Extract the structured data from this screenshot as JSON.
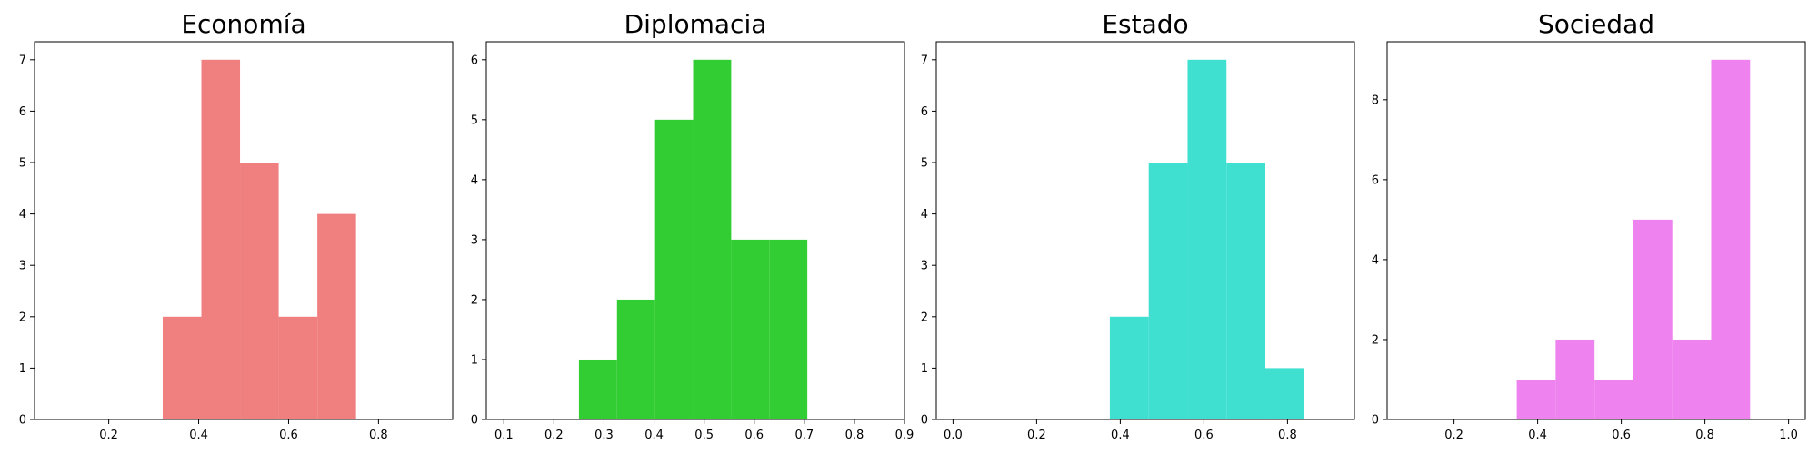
{
  "chart_data": [
    {
      "type": "histogram",
      "title": "Economía",
      "color": "#f08080",
      "xlim": [
        0.035,
        0.965
      ],
      "ylim": [
        0,
        7.35
      ],
      "xticks": [
        "0.2",
        "0.4",
        "0.6",
        "0.8"
      ],
      "yticks": [
        "0",
        "1",
        "2",
        "3",
        "4",
        "5",
        "6",
        "7"
      ],
      "bins": [
        {
          "x0": 0.32,
          "x1": 0.406,
          "count": 2
        },
        {
          "x0": 0.406,
          "x1": 0.492,
          "count": 7
        },
        {
          "x0": 0.492,
          "x1": 0.578,
          "count": 5
        },
        {
          "x0": 0.578,
          "x1": 0.664,
          "count": 2
        },
        {
          "x0": 0.664,
          "x1": 0.75,
          "count": 4
        }
      ]
    },
    {
      "type": "histogram",
      "title": "Diplomacia",
      "color": "#32cd32",
      "xlim": [
        0.065,
        0.9
      ],
      "ylim": [
        0,
        6.3
      ],
      "xticks": [
        "0.1",
        "0.2",
        "0.3",
        "0.4",
        "0.5",
        "0.6",
        "0.7",
        "0.8",
        "0.9"
      ],
      "yticks": [
        "0",
        "1",
        "2",
        "3",
        "4",
        "5",
        "6"
      ],
      "bins": [
        {
          "x0": 0.25,
          "x1": 0.326,
          "count": 1
        },
        {
          "x0": 0.326,
          "x1": 0.402,
          "count": 2
        },
        {
          "x0": 0.402,
          "x1": 0.478,
          "count": 5
        },
        {
          "x0": 0.478,
          "x1": 0.554,
          "count": 6
        },
        {
          "x0": 0.554,
          "x1": 0.63,
          "count": 3
        },
        {
          "x0": 0.63,
          "x1": 0.706,
          "count": 3
        }
      ]
    },
    {
      "type": "histogram",
      "title": "Estado",
      "color": "#40e0d0",
      "xlim": [
        -0.04,
        0.96
      ],
      "ylim": [
        0,
        7.35
      ],
      "xticks": [
        "0.0",
        "0.2",
        "0.4",
        "0.6",
        "0.8"
      ],
      "yticks": [
        "0",
        "1",
        "2",
        "3",
        "4",
        "5",
        "6",
        "7"
      ],
      "bins": [
        {
          "x0": 0.375,
          "x1": 0.468,
          "count": 2
        },
        {
          "x0": 0.468,
          "x1": 0.561,
          "count": 5
        },
        {
          "x0": 0.561,
          "x1": 0.654,
          "count": 7
        },
        {
          "x0": 0.654,
          "x1": 0.747,
          "count": 5
        },
        {
          "x0": 0.747,
          "x1": 0.84,
          "count": 1
        }
      ]
    },
    {
      "type": "histogram",
      "title": "Sociedad",
      "color": "#ee82ee",
      "xlim": [
        0.04,
        1.04
      ],
      "ylim": [
        0,
        9.45
      ],
      "xticks": [
        "0.2",
        "0.4",
        "0.6",
        "0.8",
        "1.0"
      ],
      "yticks": [
        "0",
        "2",
        "4",
        "6",
        "8"
      ],
      "bins": [
        {
          "x0": 0.35,
          "x1": 0.443,
          "count": 1
        },
        {
          "x0": 0.443,
          "x1": 0.536,
          "count": 2
        },
        {
          "x0": 0.536,
          "x1": 0.629,
          "count": 1
        },
        {
          "x0": 0.629,
          "x1": 0.722,
          "count": 5
        },
        {
          "x0": 0.722,
          "x1": 0.815,
          "count": 2
        },
        {
          "x0": 0.815,
          "x1": 0.908,
          "count": 9
        }
      ]
    }
  ]
}
